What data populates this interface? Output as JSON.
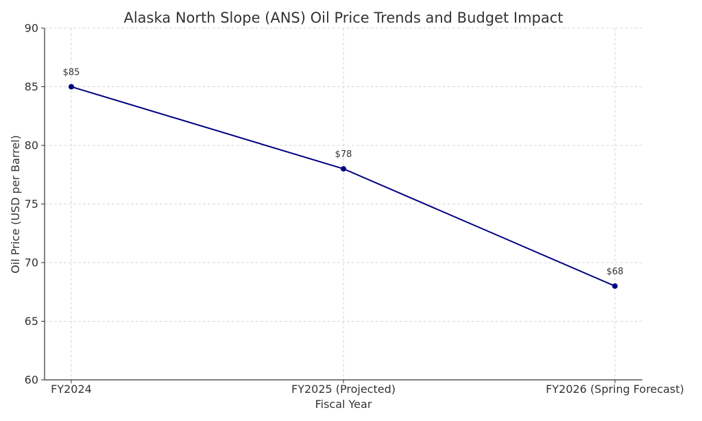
{
  "chart_data": {
    "type": "line",
    "title": "Alaska North Slope (ANS) Oil Price Trends and Budget Impact",
    "xlabel": "Fiscal Year",
    "ylabel": "Oil Price (USD per Barrel)",
    "categories": [
      "FY2024",
      "FY2025 (Projected)",
      "FY2026 (Spring Forecast)"
    ],
    "series": [
      {
        "values": [
          85,
          78,
          68
        ],
        "data_labels": [
          "$85",
          "$78",
          "$68"
        ],
        "color": "#000080"
      }
    ],
    "ylim": [
      60,
      90
    ],
    "yticks": [
      60,
      65,
      70,
      75,
      80,
      85,
      90
    ],
    "grid": true,
    "legend": "none"
  }
}
